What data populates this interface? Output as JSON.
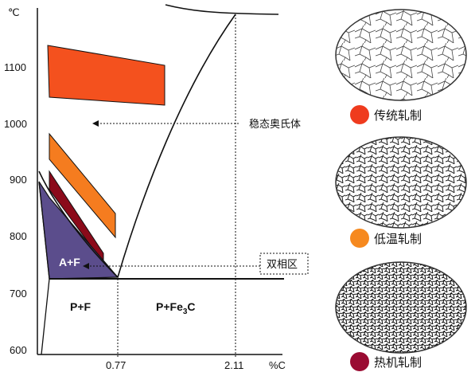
{
  "diagram": {
    "temp_unit": "℃",
    "carbon_unit": "%C",
    "y_ticks": [
      "1100",
      "1000",
      "900",
      "800",
      "700",
      "600"
    ],
    "x_ticks": [
      "0.77",
      "2.11"
    ],
    "regions": {
      "austenite_ferrite": "A+F",
      "pearlite_ferrite": "P+F",
      "pearlite_cementite_main": "P+Fe",
      "pearlite_cementite_sub": "3",
      "pearlite_cementite_tail": "C"
    },
    "annotations": {
      "stable_austenite": "稳态奥氏体",
      "two_phase_zone": "双相区"
    },
    "colors": {
      "traditional": "#f4511e",
      "low_temp": "#f57c1f",
      "thermo_mech": "#8b0a1a",
      "two_phase_fill": "#5b4d8c"
    }
  },
  "legend": {
    "items": [
      {
        "label": "传统轧制",
        "color": "#ef3b1e"
      },
      {
        "label": "低温轧制",
        "color": "#f6891f"
      },
      {
        "label": "热机轧制",
        "color": "#9a0b32"
      }
    ]
  }
}
